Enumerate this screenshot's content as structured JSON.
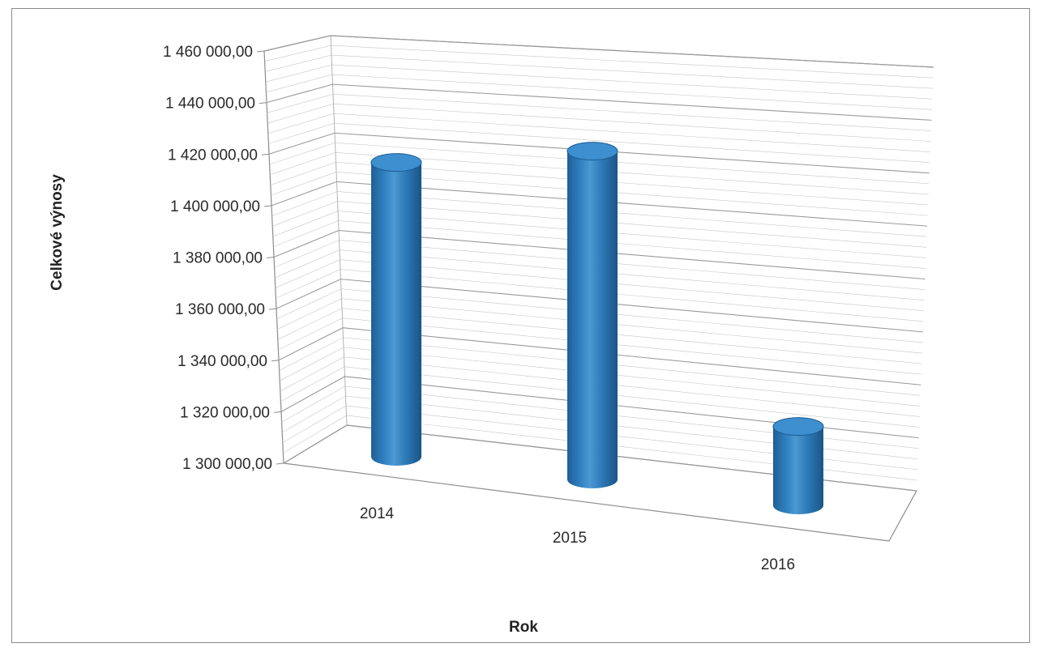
{
  "chart_data": {
    "type": "bar",
    "style": "3d-cylinder",
    "categories": [
      "2014",
      "2015",
      "2016"
    ],
    "values": [
      1419000,
      1437000,
      1334000
    ],
    "xlabel": "Rok",
    "ylabel": "Celkové výnosy",
    "ylim": [
      1300000,
      1460000
    ],
    "yticks": [
      1300000,
      1320000,
      1340000,
      1360000,
      1380000,
      1400000,
      1420000,
      1440000,
      1460000
    ],
    "ytick_labels": [
      "1 300 000,00",
      "1 320 000,00",
      "1 340 000,00",
      "1 360 000,00",
      "1 380 000,00",
      "1 400 000,00",
      "1 420 000,00",
      "1 440 000,00",
      "1 460 000,00"
    ],
    "grid": true,
    "legend": "none",
    "colors": {
      "bar": "#2f7fc0",
      "bar_dark": "#1d5a8f",
      "bar_top": "#3d8fcf",
      "grid": "#b3b3b3",
      "axis": "#8c8c8c"
    }
  }
}
